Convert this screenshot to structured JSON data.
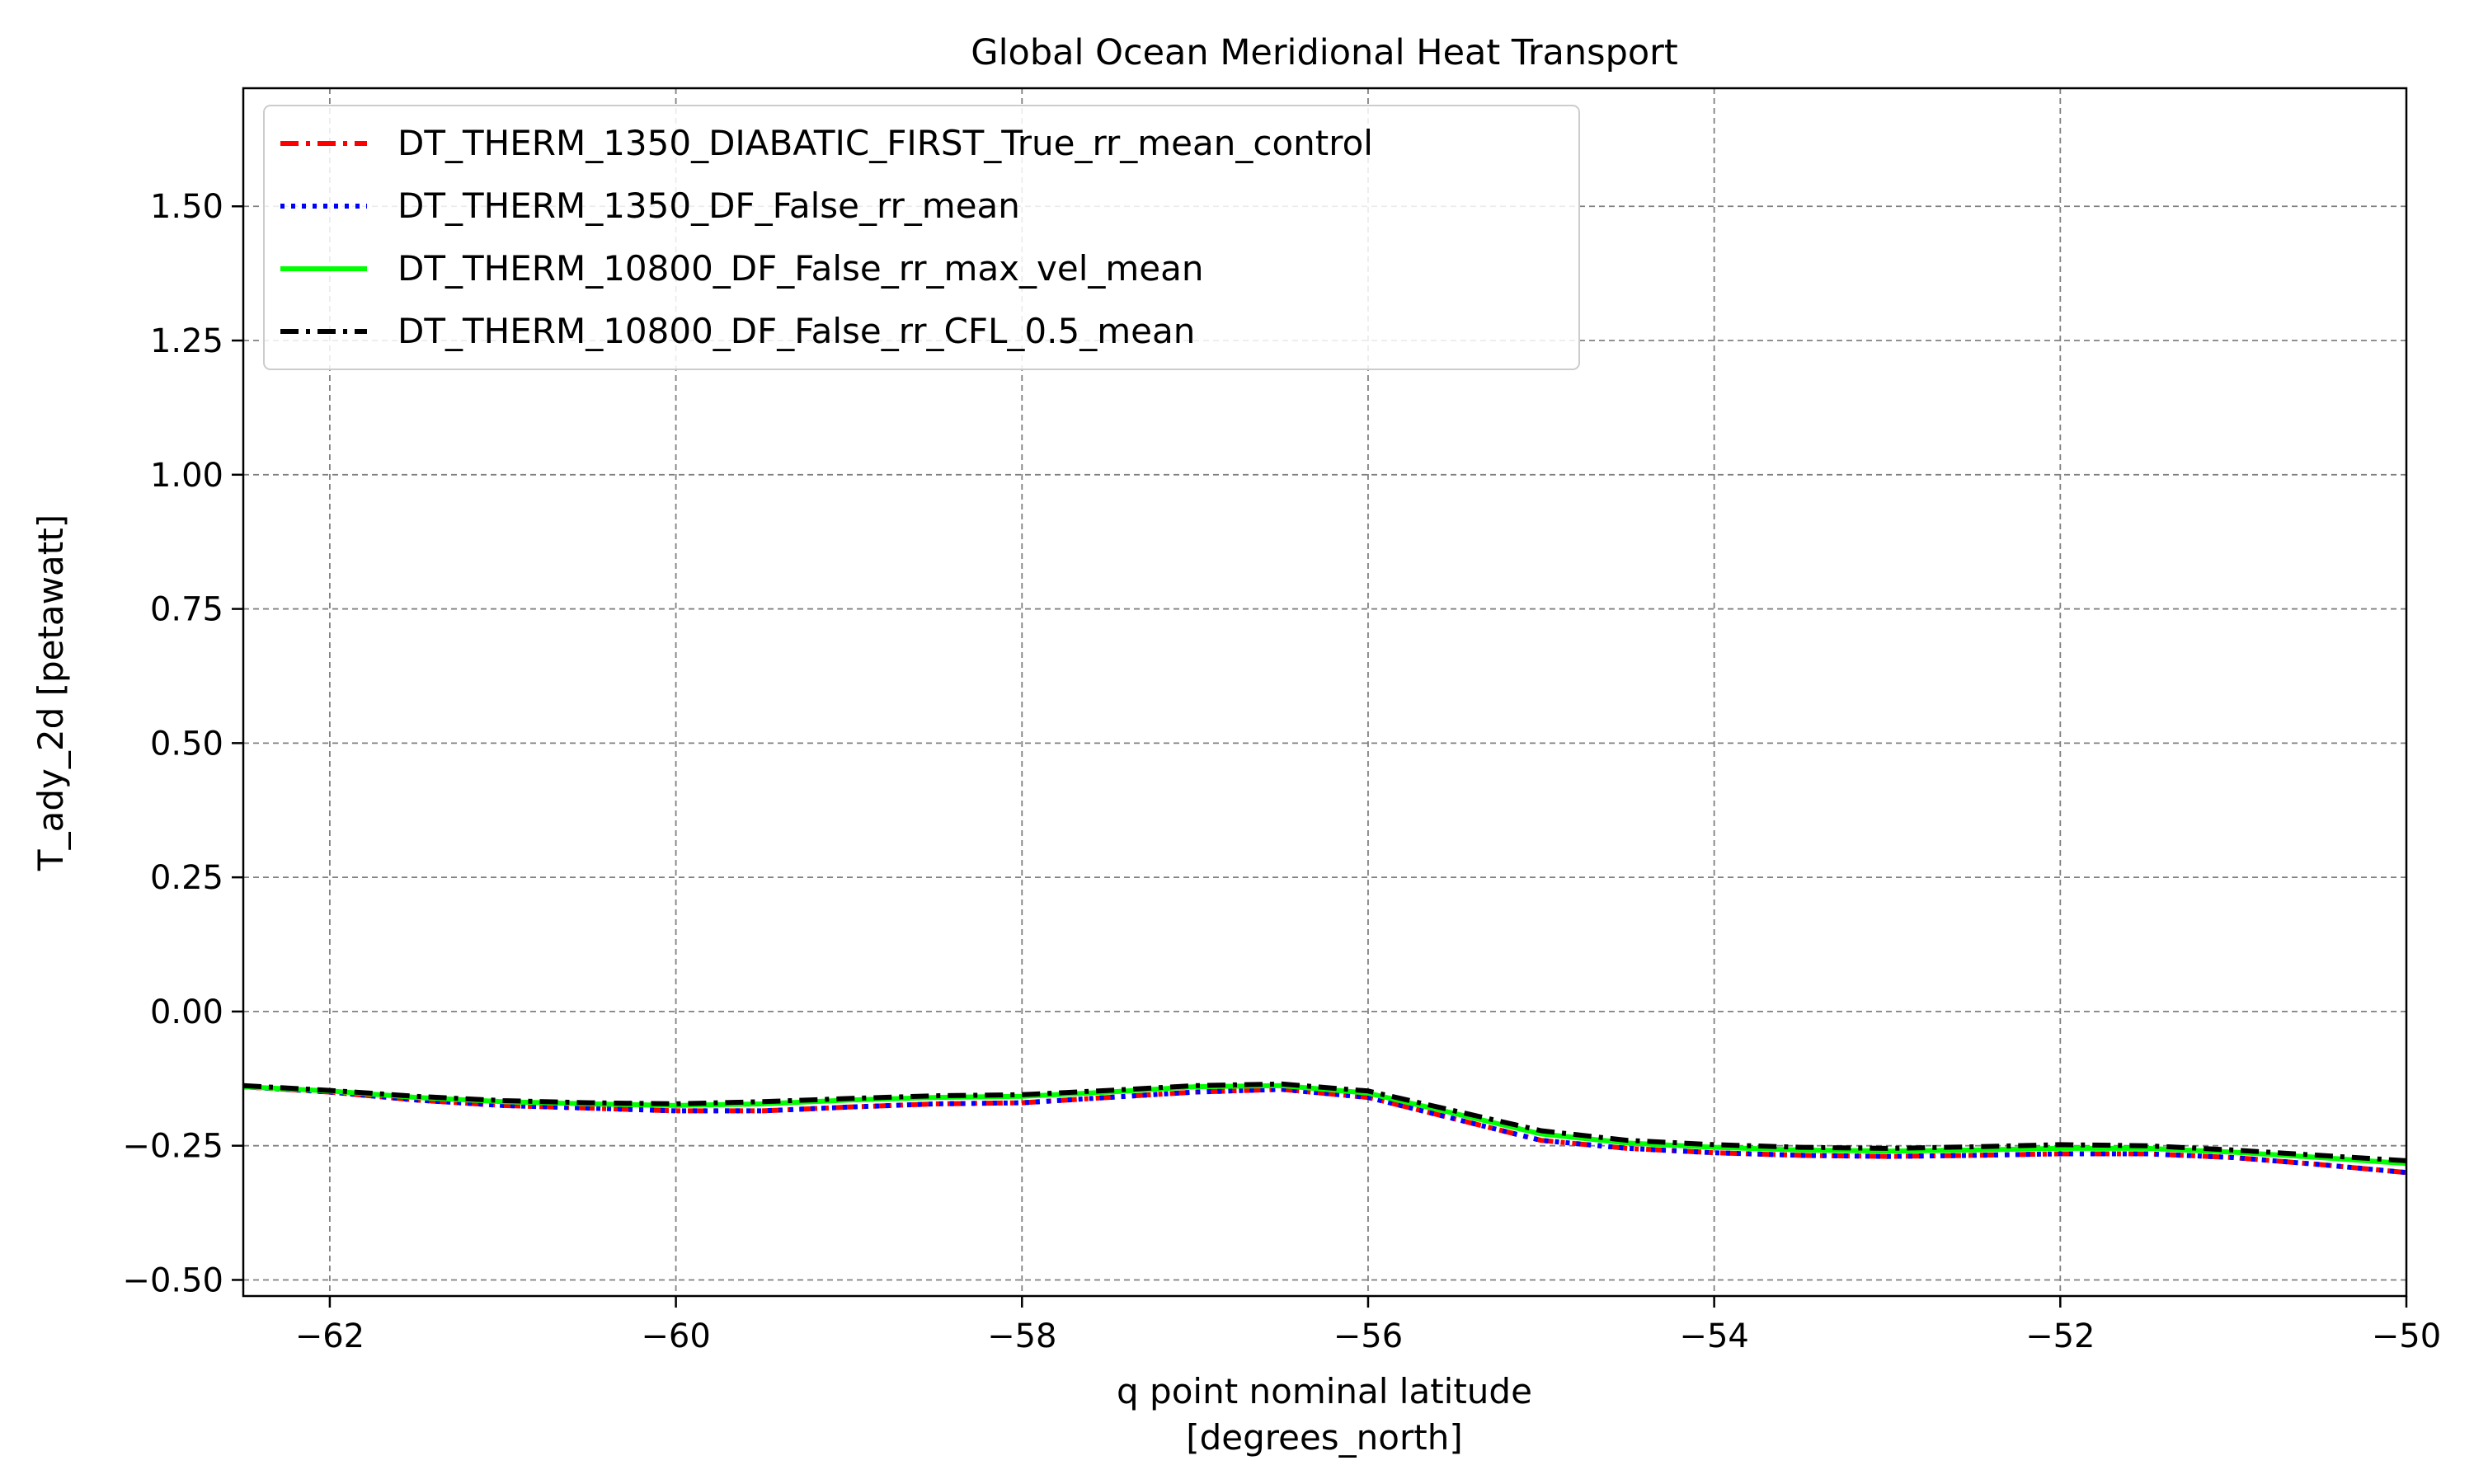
{
  "chart_data": {
    "type": "line",
    "title": "Global Ocean Meridional Heat Transport",
    "xlabel_line1": "q point nominal latitude",
    "xlabel_line2": "[degrees_north]",
    "ylabel": "T_ady_2d [petawatt]",
    "xlim": [
      -62.5,
      -50
    ],
    "ylim": [
      -0.53,
      1.72
    ],
    "xticks": [
      -62,
      -60,
      -58,
      -56,
      -54,
      -52,
      -50
    ],
    "xtick_labels": [
      "−62",
      "−60",
      "−58",
      "−56",
      "−54",
      "−52",
      "−50"
    ],
    "yticks": [
      -0.5,
      -0.25,
      0.0,
      0.25,
      0.5,
      0.75,
      1.0,
      1.25,
      1.5
    ],
    "ytick_labels": [
      "−0.50",
      "−0.25",
      "0.00",
      "0.25",
      "0.50",
      "0.75",
      "1.00",
      "1.25",
      "1.50"
    ],
    "grid": true,
    "legend_position": "top-left",
    "series": [
      {
        "name": "DT_THERM_1350_DIABATIC_FIRST_True_rr_mean_control",
        "color": "#ff0000",
        "style": "dashdot",
        "x": [
          -62.5,
          -62,
          -61.5,
          -61,
          -60.5,
          -60,
          -59.5,
          -59,
          -58.5,
          -58,
          -57.5,
          -57,
          -56.5,
          -56,
          -55.5,
          -55,
          -54.5,
          -54,
          -53.5,
          -53,
          -52.5,
          -52,
          -51.5,
          -51,
          -50.5,
          -50
        ],
        "y": [
          -0.14,
          -0.15,
          -0.165,
          -0.175,
          -0.18,
          -0.185,
          -0.185,
          -0.178,
          -0.172,
          -0.17,
          -0.16,
          -0.15,
          -0.145,
          -0.16,
          -0.2,
          -0.24,
          -0.255,
          -0.263,
          -0.268,
          -0.27,
          -0.268,
          -0.265,
          -0.265,
          -0.272,
          -0.285,
          -0.3
        ]
      },
      {
        "name": "DT_THERM_1350_DF_False_rr_mean",
        "color": "#0000ff",
        "style": "dotted",
        "x": [
          -62.5,
          -62,
          -61.5,
          -61,
          -60.5,
          -60,
          -59.5,
          -59,
          -58.5,
          -58,
          -57.5,
          -57,
          -56.5,
          -56,
          -55.5,
          -55,
          -54.5,
          -54,
          -53.5,
          -53,
          -52.5,
          -52,
          -51.5,
          -51,
          -50.5,
          -50
        ],
        "y": [
          -0.14,
          -0.15,
          -0.165,
          -0.175,
          -0.18,
          -0.185,
          -0.185,
          -0.178,
          -0.172,
          -0.17,
          -0.16,
          -0.15,
          -0.145,
          -0.16,
          -0.2,
          -0.24,
          -0.255,
          -0.263,
          -0.268,
          -0.27,
          -0.268,
          -0.265,
          -0.265,
          -0.272,
          -0.285,
          -0.3
        ]
      },
      {
        "name": "DT_THERM_10800_DF_False_rr_max_vel_mean",
        "color": "#00ff00",
        "style": "solid",
        "x": [
          -62.5,
          -62,
          -61.5,
          -61,
          -60.5,
          -60,
          -59.5,
          -59,
          -58.5,
          -58,
          -57.5,
          -57,
          -56.5,
          -56,
          -55.5,
          -55,
          -54.5,
          -54,
          -53.5,
          -53,
          -52.5,
          -52,
          -51.5,
          -51,
          -50.5,
          -50
        ],
        "y": [
          -0.14,
          -0.148,
          -0.16,
          -0.168,
          -0.172,
          -0.175,
          -0.172,
          -0.165,
          -0.16,
          -0.158,
          -0.15,
          -0.14,
          -0.138,
          -0.152,
          -0.19,
          -0.228,
          -0.245,
          -0.253,
          -0.258,
          -0.26,
          -0.258,
          -0.255,
          -0.255,
          -0.262,
          -0.272,
          -0.283
        ]
      },
      {
        "name": "DT_THERM_10800_DF_False_rr_CFL_0.5_mean",
        "color": "#000000",
        "style": "dashdot",
        "x": [
          -62.5,
          -62,
          -61.5,
          -61,
          -60.5,
          -60,
          -59.5,
          -59,
          -58.5,
          -58,
          -57.5,
          -57,
          -56.5,
          -56,
          -55.5,
          -55,
          -54.5,
          -54,
          -53.5,
          -53,
          -52.5,
          -52,
          -51.5,
          -51,
          -50.5,
          -50
        ],
        "y": [
          -0.138,
          -0.147,
          -0.158,
          -0.166,
          -0.17,
          -0.172,
          -0.168,
          -0.162,
          -0.157,
          -0.155,
          -0.147,
          -0.138,
          -0.135,
          -0.148,
          -0.185,
          -0.222,
          -0.24,
          -0.248,
          -0.253,
          -0.255,
          -0.252,
          -0.248,
          -0.25,
          -0.258,
          -0.268,
          -0.278
        ]
      }
    ]
  }
}
